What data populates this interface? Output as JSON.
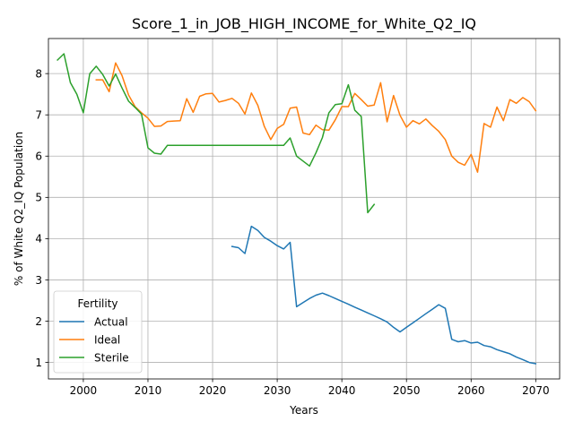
{
  "chart_data": {
    "type": "line",
    "title": "Score_1_in_JOB_HIGH_INCOME_for_White_Q2_IQ",
    "xlabel": "Years",
    "ylabel": "% of White Q2_IQ Population",
    "xlim": [
      1994.6,
      2073.7
    ],
    "ylim": [
      0.6,
      8.85
    ],
    "x_ticks": [
      2000,
      2010,
      2020,
      2030,
      2040,
      2050,
      2060,
      2070
    ],
    "y_ticks": [
      1,
      2,
      3,
      4,
      5,
      6,
      7,
      8
    ],
    "grid": true,
    "legend": {
      "title": "Fertility",
      "position": "lower-left"
    },
    "series": [
      {
        "name": "Actual",
        "color": "#1f77b4",
        "points": [
          [
            2023,
            3.81
          ],
          [
            2024,
            3.78
          ],
          [
            2025,
            3.64
          ],
          [
            2026,
            4.3
          ],
          [
            2027,
            4.2
          ],
          [
            2028,
            4.03
          ],
          [
            2029,
            3.94
          ],
          [
            2030,
            3.83
          ],
          [
            2031,
            3.75
          ],
          [
            2032,
            3.91
          ],
          [
            2033,
            2.35
          ],
          [
            2034,
            2.45
          ],
          [
            2035,
            2.55
          ],
          [
            2036,
            2.63
          ],
          [
            2037,
            2.68
          ],
          [
            2038,
            2.62
          ],
          [
            2039,
            2.55
          ],
          [
            2040,
            2.48
          ],
          [
            2041,
            2.41
          ],
          [
            2042,
            2.34
          ],
          [
            2043,
            2.27
          ],
          [
            2044,
            2.2
          ],
          [
            2045,
            2.13
          ],
          [
            2046,
            2.06
          ],
          [
            2047,
            1.98
          ],
          [
            2048,
            1.85
          ],
          [
            2049,
            1.74
          ],
          [
            2050,
            1.85
          ],
          [
            2051,
            1.96
          ],
          [
            2052,
            2.07
          ],
          [
            2053,
            2.18
          ],
          [
            2054,
            2.29
          ],
          [
            2055,
            2.4
          ],
          [
            2056,
            2.31
          ],
          [
            2057,
            1.56
          ],
          [
            2058,
            1.5
          ],
          [
            2059,
            1.53
          ],
          [
            2060,
            1.47
          ],
          [
            2061,
            1.49
          ],
          [
            2062,
            1.41
          ],
          [
            2063,
            1.38
          ],
          [
            2064,
            1.31
          ],
          [
            2065,
            1.26
          ],
          [
            2066,
            1.21
          ],
          [
            2067,
            1.13
          ],
          [
            2068,
            1.07
          ],
          [
            2069,
            1.0
          ],
          [
            2070,
            0.97
          ]
        ]
      },
      {
        "name": "Ideal",
        "color": "#ff7f0e",
        "points": [
          [
            2002,
            7.85
          ],
          [
            2003,
            7.85
          ],
          [
            2004,
            7.56
          ],
          [
            2005,
            8.26
          ],
          [
            2006,
            7.95
          ],
          [
            2007,
            7.48
          ],
          [
            2008,
            7.2
          ],
          [
            2009,
            7.05
          ],
          [
            2010,
            6.92
          ],
          [
            2011,
            6.72
          ],
          [
            2012,
            6.73
          ],
          [
            2013,
            6.84
          ],
          [
            2014,
            6.85
          ],
          [
            2015,
            6.86
          ],
          [
            2016,
            7.39
          ],
          [
            2017,
            7.06
          ],
          [
            2018,
            7.45
          ],
          [
            2019,
            7.51
          ],
          [
            2020,
            7.52
          ],
          [
            2021,
            7.31
          ],
          [
            2022,
            7.35
          ],
          [
            2023,
            7.4
          ],
          [
            2024,
            7.28
          ],
          [
            2025,
            7.02
          ],
          [
            2026,
            7.53
          ],
          [
            2027,
            7.23
          ],
          [
            2028,
            6.72
          ],
          [
            2029,
            6.4
          ],
          [
            2030,
            6.67
          ],
          [
            2031,
            6.77
          ],
          [
            2032,
            7.16
          ],
          [
            2033,
            7.19
          ],
          [
            2034,
            6.56
          ],
          [
            2035,
            6.52
          ],
          [
            2036,
            6.75
          ],
          [
            2037,
            6.64
          ],
          [
            2038,
            6.63
          ],
          [
            2039,
            6.88
          ],
          [
            2040,
            7.2
          ],
          [
            2041,
            7.2
          ],
          [
            2042,
            7.52
          ],
          [
            2043,
            7.37
          ],
          [
            2044,
            7.21
          ],
          [
            2045,
            7.24
          ],
          [
            2046,
            7.78
          ],
          [
            2047,
            6.83
          ],
          [
            2048,
            7.47
          ],
          [
            2049,
            6.99
          ],
          [
            2050,
            6.7
          ],
          [
            2051,
            6.86
          ],
          [
            2052,
            6.78
          ],
          [
            2053,
            6.9
          ],
          [
            2054,
            6.74
          ],
          [
            2055,
            6.6
          ],
          [
            2056,
            6.4
          ],
          [
            2057,
            6.0
          ],
          [
            2058,
            5.85
          ],
          [
            2059,
            5.78
          ],
          [
            2060,
            6.04
          ],
          [
            2061,
            5.61
          ],
          [
            2062,
            6.79
          ],
          [
            2063,
            6.7
          ],
          [
            2064,
            7.19
          ],
          [
            2065,
            6.86
          ],
          [
            2066,
            7.37
          ],
          [
            2067,
            7.28
          ],
          [
            2068,
            7.42
          ],
          [
            2069,
            7.32
          ],
          [
            2070,
            7.1
          ]
        ]
      },
      {
        "name": "Sterile",
        "color": "#2ca02c",
        "points": [
          [
            1996,
            8.33
          ],
          [
            1997,
            8.48
          ],
          [
            1998,
            7.78
          ],
          [
            1999,
            7.5
          ],
          [
            2000,
            7.05
          ],
          [
            2001,
            8.0
          ],
          [
            2002,
            8.18
          ],
          [
            2003,
            7.98
          ],
          [
            2004,
            7.7
          ],
          [
            2005,
            7.99
          ],
          [
            2006,
            7.65
          ],
          [
            2007,
            7.33
          ],
          [
            2008,
            7.18
          ],
          [
            2009,
            7.02
          ],
          [
            2010,
            6.2
          ],
          [
            2011,
            6.07
          ],
          [
            2012,
            6.05
          ],
          [
            2013,
            6.26
          ],
          [
            2014,
            6.26
          ],
          [
            2015,
            6.26
          ],
          [
            2016,
            6.26
          ],
          [
            2017,
            6.26
          ],
          [
            2018,
            6.26
          ],
          [
            2019,
            6.26
          ],
          [
            2020,
            6.26
          ],
          [
            2021,
            6.26
          ],
          [
            2022,
            6.26
          ],
          [
            2023,
            6.26
          ],
          [
            2024,
            6.26
          ],
          [
            2025,
            6.26
          ],
          [
            2026,
            6.26
          ],
          [
            2027,
            6.26
          ],
          [
            2028,
            6.26
          ],
          [
            2029,
            6.26
          ],
          [
            2030,
            6.26
          ],
          [
            2031,
            6.26
          ],
          [
            2032,
            6.44
          ],
          [
            2033,
            6.0
          ],
          [
            2034,
            5.88
          ],
          [
            2035,
            5.76
          ],
          [
            2036,
            6.08
          ],
          [
            2037,
            6.45
          ],
          [
            2038,
            7.05
          ],
          [
            2039,
            7.25
          ],
          [
            2040,
            7.27
          ],
          [
            2041,
            7.73
          ],
          [
            2042,
            7.11
          ],
          [
            2043,
            6.96
          ],
          [
            2044,
            4.63
          ],
          [
            2045,
            4.83
          ]
        ]
      }
    ]
  }
}
